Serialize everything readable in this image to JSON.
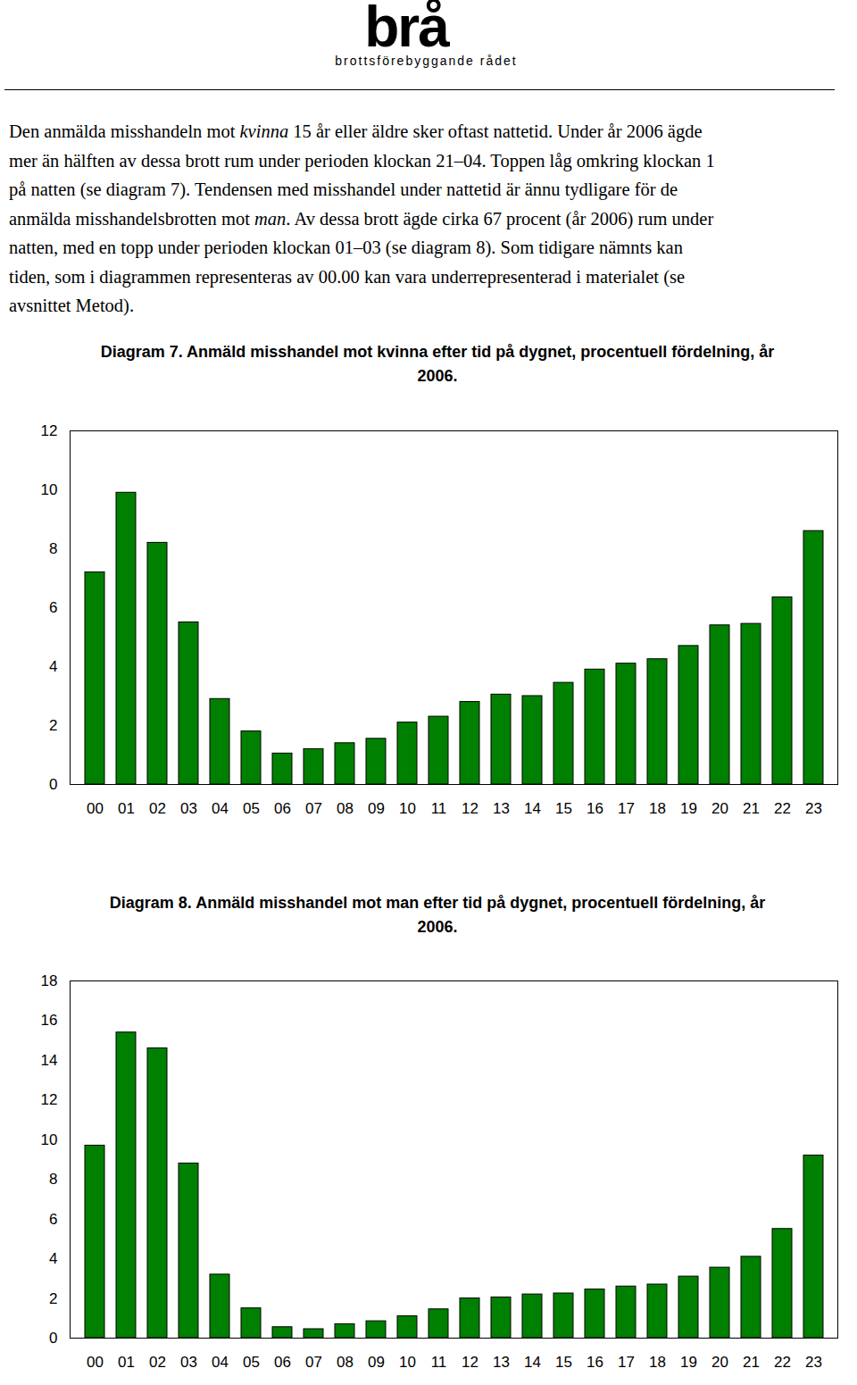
{
  "header": {
    "logo": "brå",
    "tagline": "brottsförebyggande rådet"
  },
  "paragraph": [
    [
      {
        "text": "Den anmälda misshandeln mot "
      },
      {
        "text": "kvinna",
        "italic": true
      },
      {
        "text": " 15 år eller äldre sker oftast nattetid. Under år 2006 ägde"
      }
    ],
    [
      {
        "text": "mer än hälften av dessa brott rum under perioden klockan 21–04. Toppen låg omkring klockan 1"
      }
    ],
    [
      {
        "text": "på natten (se diagram 7). Tendensen med misshandel under nattetid är ännu tydligare för de"
      }
    ],
    [
      {
        "text": "anmälda misshandelsbrotten mot "
      },
      {
        "text": "man",
        "italic": true
      },
      {
        "text": ". Av dessa brott ägde cirka 67 procent (år 2006) rum under"
      }
    ],
    [
      {
        "text": "natten, med en topp under perioden klockan 01–03 (se diagram 8). Som tidigare nämnts kan"
      }
    ],
    [
      {
        "text": "tiden, som i diagrammen representeras av 00.00 kan vara underrepresenterad i materialet (se"
      }
    ],
    [
      {
        "text": "avsnittet Metod)."
      }
    ]
  ],
  "chart_data": [
    {
      "type": "bar",
      "title": "Diagram 7. Anmäld misshandel mot kvinna efter tid på dygnet, procentuell fördelning, år 2006.",
      "categories": [
        "00",
        "01",
        "02",
        "03",
        "04",
        "05",
        "06",
        "07",
        "08",
        "09",
        "10",
        "11",
        "12",
        "13",
        "14",
        "15",
        "16",
        "17",
        "18",
        "19",
        "20",
        "21",
        "22",
        "23"
      ],
      "values": [
        7.2,
        9.9,
        8.2,
        5.5,
        2.9,
        1.8,
        1.05,
        1.2,
        1.4,
        1.55,
        2.1,
        2.3,
        2.8,
        3.05,
        3.0,
        3.45,
        3.9,
        4.1,
        4.25,
        4.7,
        5.4,
        5.45,
        6.35,
        8.6
      ],
      "color": "#008000",
      "ylim": [
        0,
        12
      ],
      "yticks": [
        0,
        2,
        4,
        6,
        8,
        10,
        12
      ],
      "grid": false
    },
    {
      "type": "bar",
      "title": "Diagram 8. Anmäld misshandel mot man efter tid på dygnet, procentuell fördelning, år 2006.",
      "categories": [
        "00",
        "01",
        "02",
        "03",
        "04",
        "05",
        "06",
        "07",
        "08",
        "09",
        "10",
        "11",
        "12",
        "13",
        "14",
        "15",
        "16",
        "17",
        "18",
        "19",
        "20",
        "21",
        "22",
        "23"
      ],
      "values": [
        9.7,
        15.4,
        14.6,
        8.8,
        3.2,
        1.5,
        0.55,
        0.45,
        0.7,
        0.85,
        1.1,
        1.45,
        2.0,
        2.05,
        2.2,
        2.25,
        2.45,
        2.6,
        2.7,
        3.1,
        3.55,
        4.1,
        5.5,
        9.2
      ],
      "color": "#008000",
      "ylim": [
        0,
        18
      ],
      "yticks": [
        0,
        2,
        4,
        6,
        8,
        10,
        12,
        14,
        16,
        18
      ],
      "grid": false
    }
  ]
}
